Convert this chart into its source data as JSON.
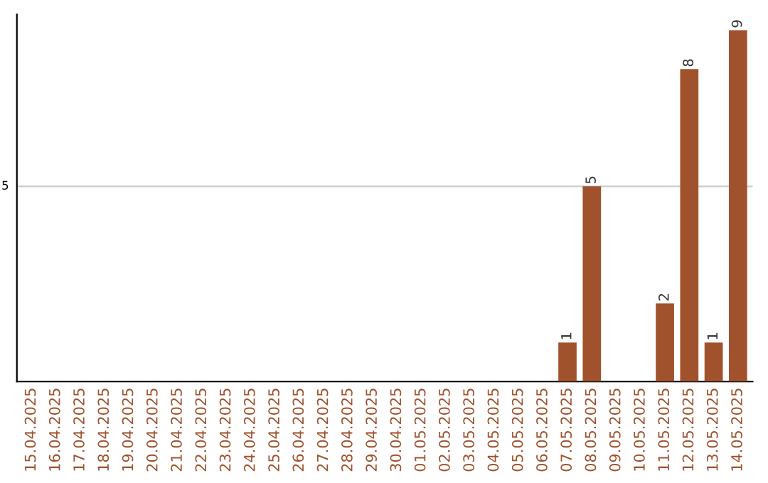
{
  "chart_data": {
    "type": "bar",
    "categories": [
      "15.04.2025",
      "16.04.2025",
      "17.04.2025",
      "18.04.2025",
      "19.04.2025",
      "20.04.2025",
      "21.04.2025",
      "22.04.2025",
      "23.04.2025",
      "24.04.2025",
      "25.04.2025",
      "26.04.2025",
      "27.04.2025",
      "28.04.2025",
      "29.04.2025",
      "30.04.2025",
      "01.05.2025",
      "02.05.2025",
      "03.05.2025",
      "04.05.2025",
      "05.05.2025",
      "06.05.2025",
      "07.05.2025",
      "08.05.2025",
      "09.05.2025",
      "10.05.2025",
      "11.05.2025",
      "12.05.2025",
      "13.05.2025",
      "14.05.2025"
    ],
    "values": [
      null,
      null,
      null,
      null,
      null,
      null,
      null,
      null,
      null,
      null,
      null,
      null,
      null,
      null,
      null,
      null,
      null,
      null,
      null,
      null,
      null,
      null,
      1,
      5,
      null,
      null,
      2,
      8,
      1,
      9
    ],
    "data_labels": true,
    "color": "#a0522d",
    "ylim": [
      0,
      9.4
    ],
    "ref_lines": [
      {
        "axis": "y",
        "value": 5,
        "label": "5",
        "color": "#cccccc"
      }
    ]
  }
}
